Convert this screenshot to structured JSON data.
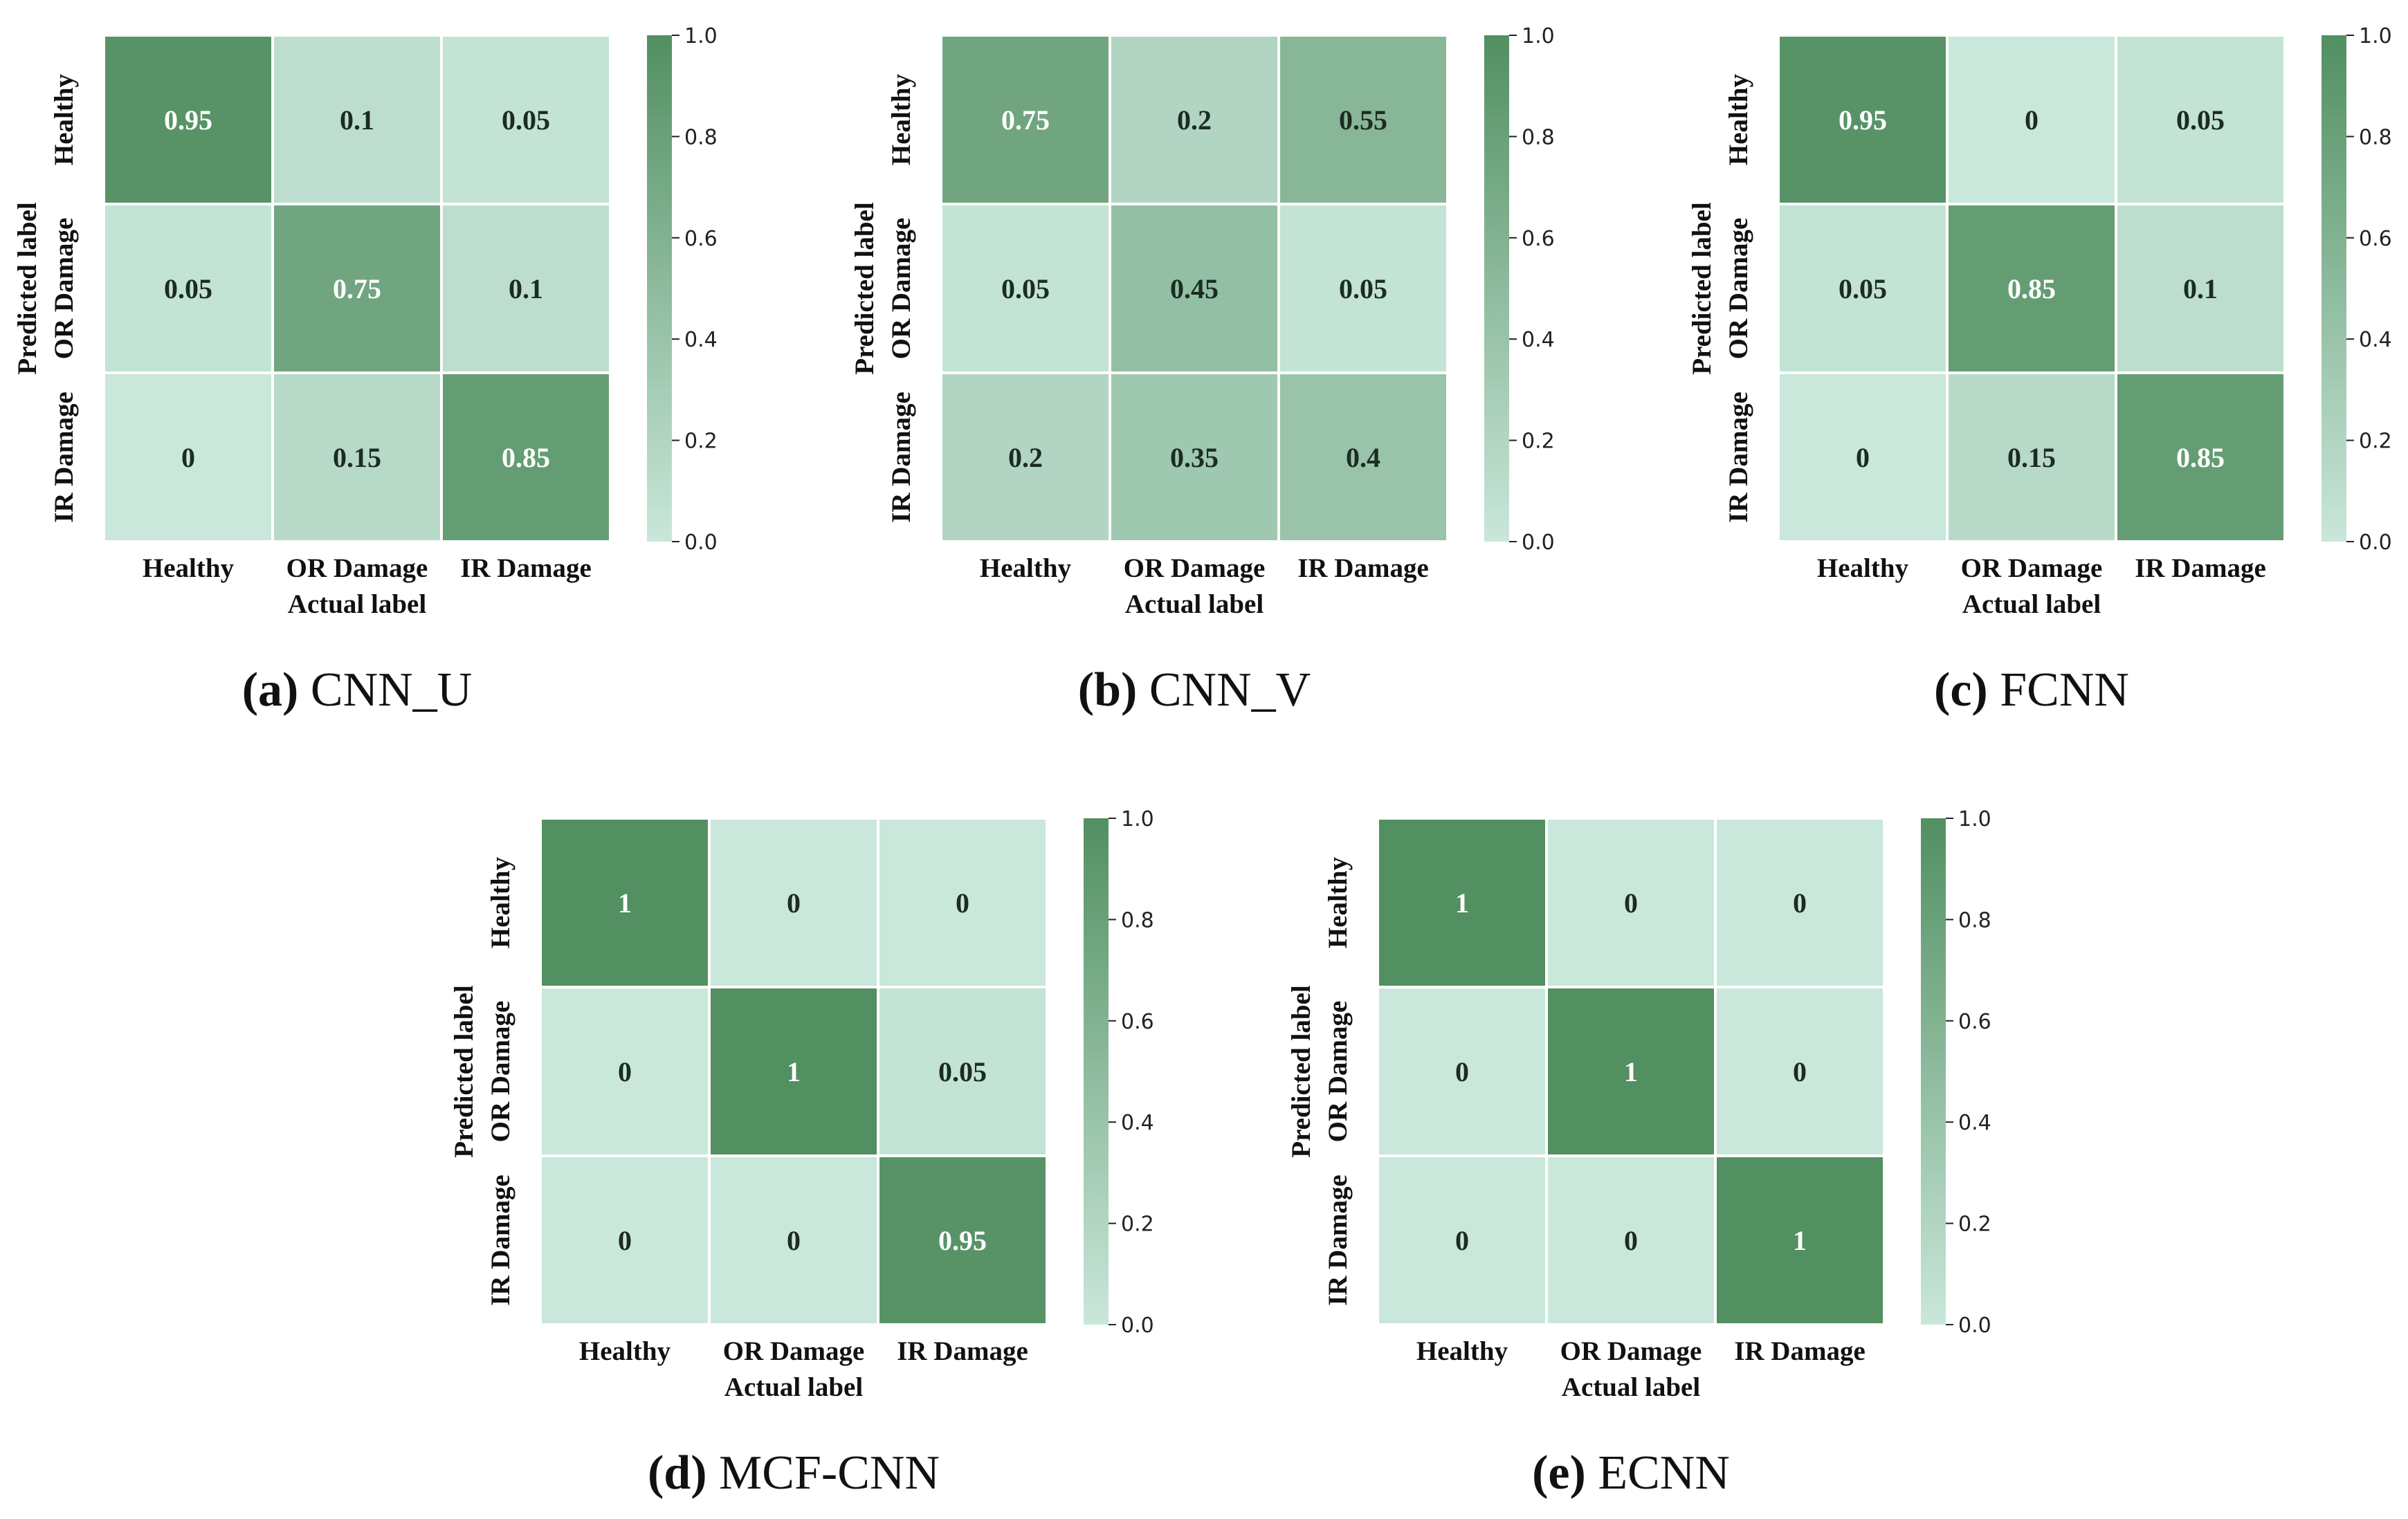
{
  "colors": {
    "low": "#c9e7da",
    "high": "#528f61",
    "cell_border": "#ffffff",
    "text_dark": "#1c2b23",
    "text_light": "#ffffff"
  },
  "chart_data": [
    {
      "type": "heatmap",
      "panel_letter": "(a)",
      "panel_name": "CNN_U",
      "x_categories": [
        "Healthy",
        "OR Damage",
        "IR Damage"
      ],
      "y_categories": [
        "Healthy",
        "OR Damage",
        "IR Damage"
      ],
      "xlabel": "Actual label",
      "ylabel": "Predicted label",
      "values": [
        [
          0.95,
          0.1,
          0.05
        ],
        [
          0.05,
          0.75,
          0.1
        ],
        [
          0,
          0.15,
          0.85
        ]
      ],
      "value_labels": [
        [
          "0.95",
          "0.1",
          "0.05"
        ],
        [
          "0.05",
          "0.75",
          "0.1"
        ],
        [
          "0",
          "0.15",
          "0.85"
        ]
      ],
      "colorbar": {
        "range": [
          0,
          1
        ],
        "ticks": [
          "0.0",
          "0.2",
          "0.4",
          "0.6",
          "0.8",
          "1.0"
        ]
      }
    },
    {
      "type": "heatmap",
      "panel_letter": "(b)",
      "panel_name": "CNN_V",
      "x_categories": [
        "Healthy",
        "OR Damage",
        "IR Damage"
      ],
      "y_categories": [
        "Healthy",
        "OR Damage",
        "IR Damage"
      ],
      "xlabel": "Actual label",
      "ylabel": "Predicted label",
      "values": [
        [
          0.75,
          0.2,
          0.55
        ],
        [
          0.05,
          0.45,
          0.05
        ],
        [
          0.2,
          0.35,
          0.4
        ]
      ],
      "value_labels": [
        [
          "0.75",
          "0.2",
          "0.55"
        ],
        [
          "0.05",
          "0.45",
          "0.05"
        ],
        [
          "0.2",
          "0.35",
          "0.4"
        ]
      ],
      "colorbar": {
        "range": [
          0,
          1
        ],
        "ticks": [
          "0.0",
          "0.2",
          "0.4",
          "0.6",
          "0.8",
          "1.0"
        ]
      }
    },
    {
      "type": "heatmap",
      "panel_letter": "(c)",
      "panel_name": "FCNN",
      "x_categories": [
        "Healthy",
        "OR Damage",
        "IR Damage"
      ],
      "y_categories": [
        "Healthy",
        "OR Damage",
        "IR Damage"
      ],
      "xlabel": "Actual label",
      "ylabel": "Predicted label",
      "values": [
        [
          0.95,
          0,
          0.05
        ],
        [
          0.05,
          0.85,
          0.1
        ],
        [
          0,
          0.15,
          0.85
        ]
      ],
      "value_labels": [
        [
          "0.95",
          "0",
          "0.05"
        ],
        [
          "0.05",
          "0.85",
          "0.1"
        ],
        [
          "0",
          "0.15",
          "0.85"
        ]
      ],
      "colorbar": {
        "range": [
          0,
          1
        ],
        "ticks": [
          "0.0",
          "0.2",
          "0.4",
          "0.6",
          "0.8",
          "1.0"
        ]
      }
    },
    {
      "type": "heatmap",
      "panel_letter": "(d)",
      "panel_name": "MCF-CNN",
      "x_categories": [
        "Healthy",
        "OR Damage",
        "IR Damage"
      ],
      "y_categories": [
        "Healthy",
        "OR Damage",
        "IR Damage"
      ],
      "xlabel": "Actual label",
      "ylabel": "Predicted label",
      "values": [
        [
          1,
          0,
          0
        ],
        [
          0,
          1,
          0.05
        ],
        [
          0,
          0,
          0.95
        ]
      ],
      "value_labels": [
        [
          "1",
          "0",
          "0"
        ],
        [
          "0",
          "1",
          "0.05"
        ],
        [
          "0",
          "0",
          "0.95"
        ]
      ],
      "colorbar": {
        "range": [
          0,
          1
        ],
        "ticks": [
          "0.0",
          "0.2",
          "0.4",
          "0.6",
          "0.8",
          "1.0"
        ]
      }
    },
    {
      "type": "heatmap",
      "panel_letter": "(e)",
      "panel_name": "ECNN",
      "x_categories": [
        "Healthy",
        "OR Damage",
        "IR Damage"
      ],
      "y_categories": [
        "Healthy",
        "OR Damage",
        "IR Damage"
      ],
      "xlabel": "Actual label",
      "ylabel": "Predicted label",
      "values": [
        [
          1,
          0,
          0
        ],
        [
          0,
          1,
          0
        ],
        [
          0,
          0,
          1
        ]
      ],
      "value_labels": [
        [
          "1",
          "0",
          "0"
        ],
        [
          "0",
          "1",
          "0"
        ],
        [
          "0",
          "0",
          "1"
        ]
      ],
      "colorbar": {
        "range": [
          0,
          1
        ],
        "ticks": [
          "0.0",
          "0.2",
          "0.4",
          "0.6",
          "0.8",
          "1.0"
        ]
      }
    }
  ]
}
